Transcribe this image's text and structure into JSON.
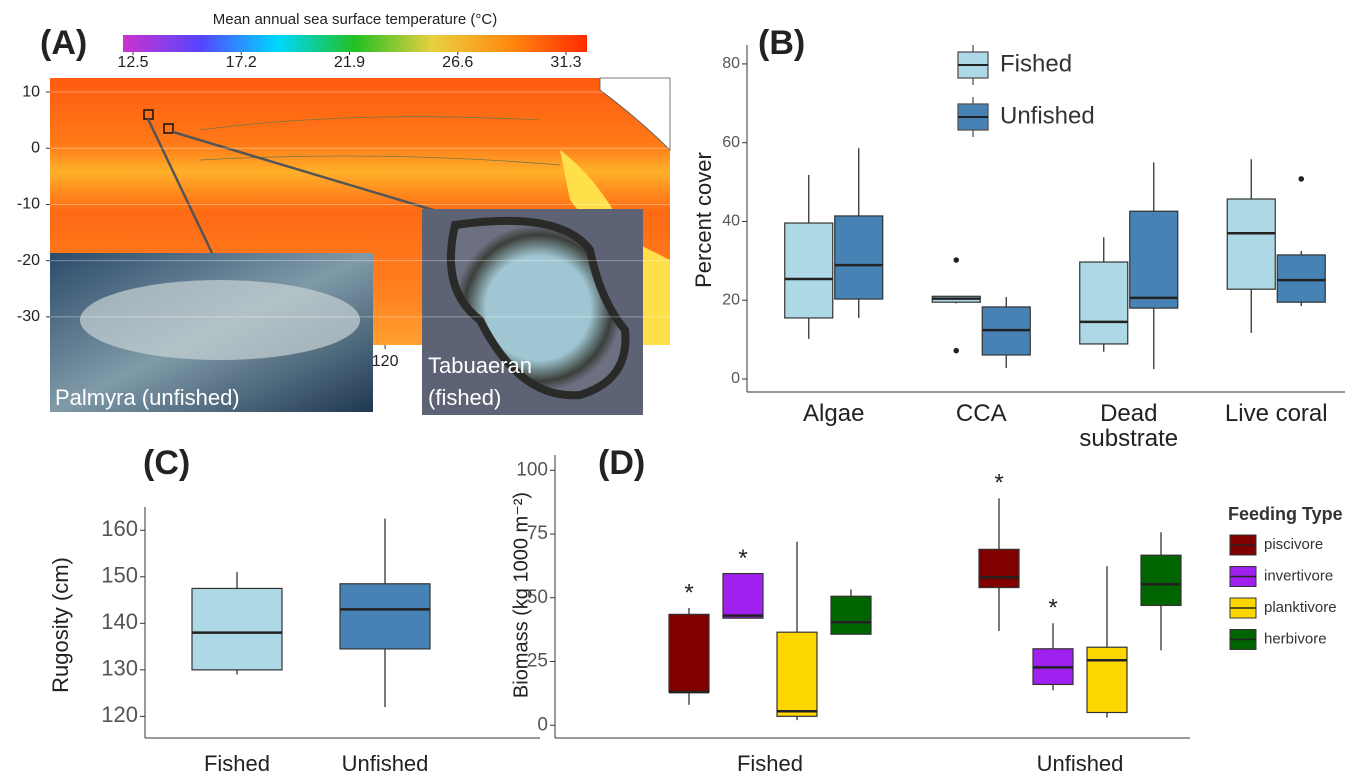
{
  "chart_data": [
    {
      "type": "map",
      "label": "(A)",
      "colorbar_title": "Mean annual sea surface temperature (°C)",
      "clim": [
        12.5,
        31.3
      ],
      "cticks": [
        12.5,
        17.2,
        21.9,
        26.6,
        31.3
      ],
      "colormap": [
        "#cc33cc",
        "#5544ff",
        "#00d8ff",
        "#22c022",
        "#e8d040",
        "#ff8a10",
        "#ff2a00"
      ],
      "ylim": [
        -35,
        12.5
      ],
      "yticks": [
        10,
        0,
        -10,
        -20,
        -30
      ],
      "xlim": [
        180,
        69
      ],
      "xticks": [
        120
      ],
      "insets": [
        "Palmyra (unfished)",
        "Tabuaeran (fished)"
      ]
    },
    {
      "type": "box",
      "label": "(B)",
      "ylabel": "Percent cover",
      "categories": [
        "Algae",
        "CCA",
        "Dead substrate",
        "Live coral"
      ],
      "ylim": [
        -3.3,
        84.8
      ],
      "yticks": [
        0,
        20,
        40,
        60,
        80
      ],
      "legend": "top",
      "series": [
        {
          "name": "Fished",
          "color": "#add8e6",
          "values": [
            {
              "min": 10.2,
              "q1": 15.5,
              "median": 25.4,
              "q3": 39.6,
              "max": 51.8
            },
            {
              "min": 19.2,
              "q1": 19.5,
              "median": 20.4,
              "q3": 21,
              "max": 21,
              "outliers": [
                30.2,
                7.2
              ]
            },
            {
              "min": 6.9,
              "q1": 8.9,
              "median": 14.5,
              "q3": 29.7,
              "max": 36
            },
            {
              "min": 11.7,
              "q1": 22.8,
              "median": 37,
              "q3": 45.7,
              "max": 55.8
            }
          ]
        },
        {
          "name": "Unfished",
          "color": "#4682b4",
          "values": [
            {
              "min": 15.5,
              "q1": 20.3,
              "median": 28.9,
              "q3": 41.4,
              "max": 58.6
            },
            {
              "min": 2.8,
              "q1": 6.1,
              "median": 12.4,
              "q3": 18.3,
              "max": 20.8
            },
            {
              "min": 2.5,
              "q1": 18,
              "median": 20.6,
              "q3": 42.6,
              "max": 55
            },
            {
              "min": 18.5,
              "q1": 19.5,
              "median": 25.1,
              "q3": 31.5,
              "max": 32.5,
              "outliers": [
                50.8
              ]
            }
          ]
        }
      ]
    },
    {
      "type": "box",
      "label": "(C)",
      "ylabel": "Rugosity (cm)",
      "categories": [
        "Fished",
        "Unfished"
      ],
      "colors": [
        "#add8e6",
        "#4682b4"
      ],
      "ylim": [
        116,
        165
      ],
      "yticks": [
        120,
        130,
        140,
        150,
        160
      ],
      "values": [
        {
          "min": 129,
          "q1": 130,
          "median": 138,
          "q3": 147.5,
          "max": 151
        },
        {
          "min": 122,
          "q1": 134.5,
          "median": 143,
          "q3": 148.5,
          "max": 162.5
        }
      ]
    },
    {
      "type": "box",
      "label": "(D)",
      "ylabel": "Biomass (kg 1000 m⁻²)",
      "categories": [
        "Fished",
        "Unfished"
      ],
      "legend_title": "Feeding Type",
      "legend": "right",
      "ylim": [
        -5,
        106
      ],
      "yticks": [
        0,
        25,
        50,
        75,
        100
      ],
      "series": [
        {
          "name": "piscivore",
          "color": "#800000",
          "annotations": [
            "*",
            "*"
          ],
          "values": [
            {
              "min": 8,
              "q1": 13,
              "median": 13,
              "q3": 43.5,
              "max": 46
            },
            {
              "min": 37,
              "q1": 54,
              "median": 58,
              "q3": 69,
              "max": 89
            }
          ]
        },
        {
          "name": "invertivore",
          "color": "#a020f0",
          "annotations": [
            "*",
            "*"
          ],
          "values": [
            {
              "min": 42,
              "q1": 42,
              "median": 43,
              "q3": 59.5,
              "max": 59.5
            },
            {
              "min": 13.7,
              "q1": 16,
              "median": 22.7,
              "q3": 30,
              "max": 40
            }
          ]
        },
        {
          "name": "planktivore",
          "color": "#ffd700",
          "values": [
            {
              "min": 2,
              "q1": 3.5,
              "median": 5.5,
              "q3": 36.5,
              "max": 72
            },
            {
              "min": 3,
              "q1": 5,
              "median": 25.5,
              "q3": 30.6,
              "max": 62.4
            }
          ]
        },
        {
          "name": "herbivore",
          "color": "#006400",
          "values": [
            {
              "min": 35.7,
              "q1": 35.7,
              "median": 40.4,
              "q3": 50.6,
              "max": 53.3
            },
            {
              "min": 29.4,
              "q1": 47,
              "median": 55.3,
              "q3": 66.7,
              "max": 75.7
            }
          ]
        }
      ]
    }
  ]
}
